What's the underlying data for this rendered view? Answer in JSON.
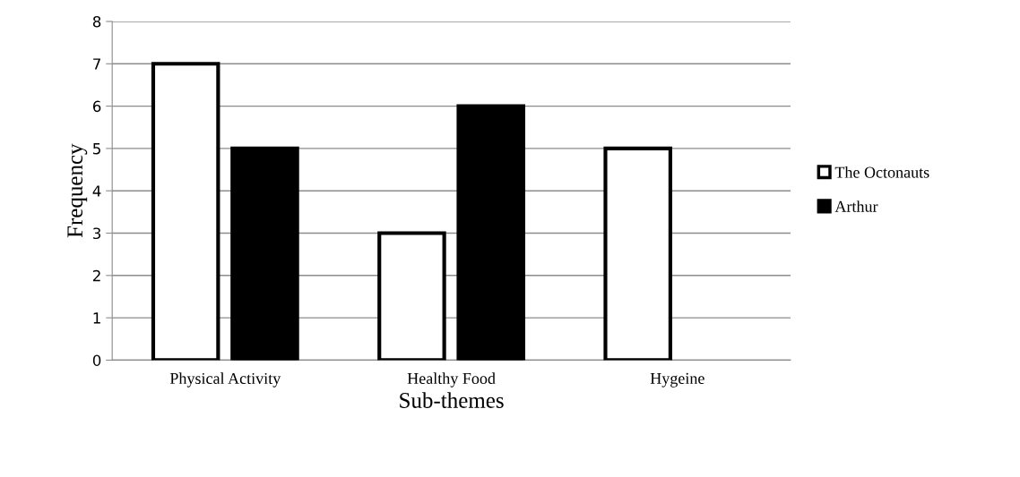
{
  "chart_data": {
    "type": "bar",
    "xlabel": "Sub-themes",
    "ylabel": "Frequency",
    "categories": [
      "Physical Activity",
      "Healthy Food",
      "Hygeine"
    ],
    "series": [
      {
        "name": "The Octonauts",
        "color": "#ffffff",
        "values": [
          7,
          3,
          5
        ]
      },
      {
        "name": "Arthur",
        "color": "#000000",
        "values": [
          5,
          6,
          0
        ]
      }
    ],
    "ylim": [
      0,
      8
    ],
    "yticks": [
      0,
      1,
      2,
      3,
      4,
      5,
      6,
      7,
      8
    ],
    "grid": "y",
    "legend": "right"
  }
}
